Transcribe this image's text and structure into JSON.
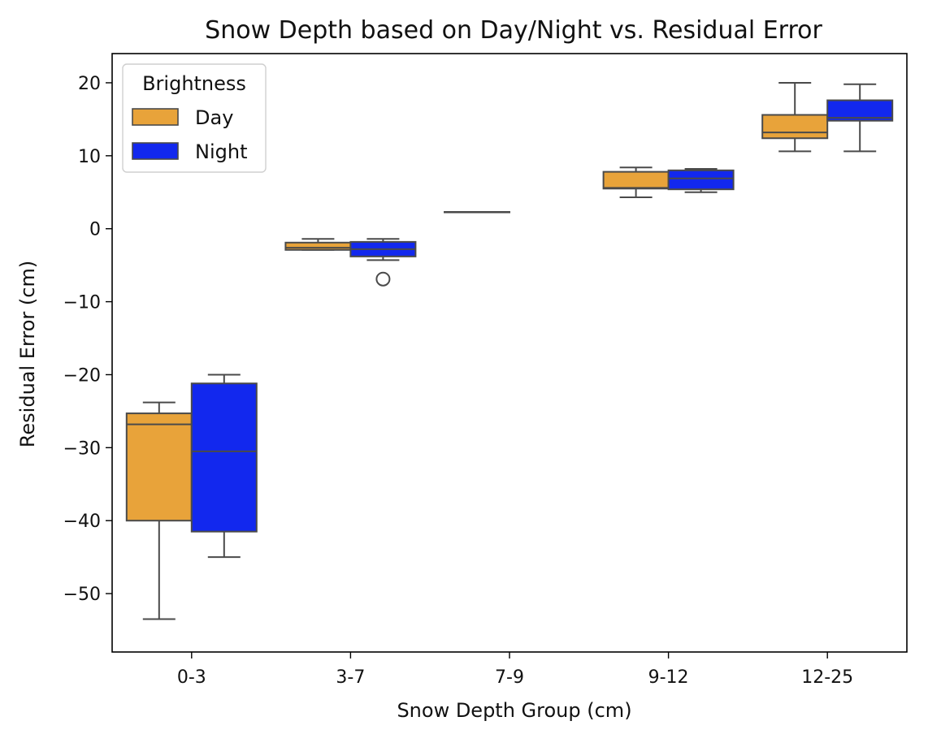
{
  "chart_data": {
    "type": "box",
    "title": "Snow Depth based on Day/Night vs. Residual Error",
    "xlabel": "Snow Depth Group (cm)",
    "ylabel": "Residual Error (cm)",
    "categories": [
      "0-3",
      "3-7",
      "7-9",
      "9-12",
      "12-25"
    ],
    "ylim": [
      -58,
      24
    ],
    "yticks": [
      20,
      10,
      0,
      -10,
      -20,
      -30,
      -40,
      -50
    ],
    "ytick_labels": [
      "20",
      "10",
      "0",
      "−10",
      "−20",
      "−30",
      "−40",
      "−50"
    ],
    "grid": false,
    "legend": {
      "title": "Brightness",
      "position": "top-left"
    },
    "series": [
      {
        "name": "Day",
        "color": "#e8a33a",
        "boxes": [
          {
            "category": "0-3",
            "whisker_low": -53.5,
            "q1": -40,
            "median": -26.8,
            "q3": -25.3,
            "whisker_high": -23.8,
            "outliers": []
          },
          {
            "category": "3-7",
            "whisker_low": -2.9,
            "q1": -2.9,
            "median": -2.6,
            "q3": -1.9,
            "whisker_high": -1.4,
            "outliers": []
          },
          {
            "category": "7-9",
            "whisker_low": 2.3,
            "q1": 2.3,
            "median": 2.3,
            "q3": 2.3,
            "whisker_high": 2.3,
            "outliers": []
          },
          {
            "category": "9-12",
            "whisker_low": 4.3,
            "q1": 5.5,
            "median": 5.6,
            "q3": 7.8,
            "whisker_high": 8.4,
            "outliers": []
          },
          {
            "category": "12-25",
            "whisker_low": 10.6,
            "q1": 12.4,
            "median": 13.2,
            "q3": 15.6,
            "whisker_high": 20.0,
            "outliers": []
          }
        ]
      },
      {
        "name": "Night",
        "color": "#1228ee",
        "boxes": [
          {
            "category": "0-3",
            "whisker_low": -45.0,
            "q1": -41.5,
            "median": -30.5,
            "q3": -21.2,
            "whisker_high": -20.0,
            "outliers": []
          },
          {
            "category": "3-7",
            "whisker_low": -4.3,
            "q1": -3.8,
            "median": -2.8,
            "q3": -1.8,
            "whisker_high": -1.4,
            "outliers": [
              -6.9
            ]
          },
          {
            "category": "7-9",
            "whisker_low": null,
            "q1": null,
            "median": null,
            "q3": null,
            "whisker_high": null,
            "outliers": []
          },
          {
            "category": "9-12",
            "whisker_low": 5.0,
            "q1": 5.4,
            "median": 6.9,
            "q3": 8.0,
            "whisker_high": 8.2,
            "outliers": []
          },
          {
            "category": "12-25",
            "whisker_low": 10.6,
            "q1": 14.8,
            "median": 15.2,
            "q3": 17.6,
            "whisker_high": 19.8,
            "outliers": []
          }
        ]
      }
    ]
  }
}
